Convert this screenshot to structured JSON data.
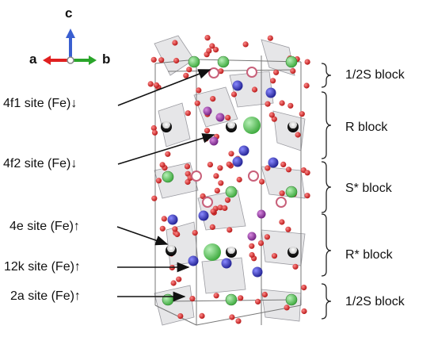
{
  "axes": {
    "c": "c",
    "a": "a",
    "b": "b",
    "colors": {
      "c": "#3a5fd0",
      "a": "#e02020",
      "b": "#2aa52a"
    }
  },
  "site_labels": [
    {
      "text": "4f1 site (Fe)",
      "spin": "↓"
    },
    {
      "text": "4f2 site (Fe)",
      "spin": "↓"
    },
    {
      "text": "4e site (Fe)",
      "spin": "↑"
    },
    {
      "text": "12k site (Fe)",
      "spin": "↑"
    },
    {
      "text": "2a site (Fe)",
      "spin": "↑"
    }
  ],
  "block_labels": [
    {
      "text": "1/2S block"
    },
    {
      "text": "R block"
    },
    {
      "text": "S* block"
    },
    {
      "text": "R* block"
    },
    {
      "text": "1/2S block"
    }
  ],
  "atom_colors": {
    "oxygen": "#d41818",
    "green": "#47c247",
    "blue": "#2a2aa8",
    "purple": "#8a2a9a",
    "black": "#1a1a1a",
    "pink_ring": "#c8607a"
  }
}
